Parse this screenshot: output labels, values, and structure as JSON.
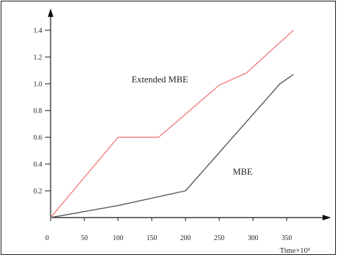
{
  "chart_data": {
    "type": "line",
    "title": "",
    "xlabel": "Time×10³",
    "ylabel": "",
    "xlim": [
      0,
      370
    ],
    "ylim": [
      0,
      1.5
    ],
    "x_ticks": [
      0,
      50,
      100,
      150,
      200,
      250,
      300,
      350
    ],
    "y_ticks": [
      0.2,
      0.4,
      0.6,
      0.8,
      1.0,
      1.2,
      1.4
    ],
    "x_tick_labels": [
      "0",
      "50",
      "100",
      "150",
      "200",
      "250",
      "300",
      "350"
    ],
    "y_tick_labels": [
      "0.2",
      "0.4",
      "0.6",
      "0.8",
      "1.0",
      "1.2",
      "1.4"
    ],
    "grid": false,
    "legend": "none",
    "series": [
      {
        "name": "Extended MBE",
        "color": "#f08080",
        "label_at": [
          120,
          1.01
        ],
        "x": [
          0,
          100,
          160,
          250,
          290,
          360
        ],
        "y": [
          0,
          0.6,
          0.6,
          0.99,
          1.08,
          1.4
        ]
      },
      {
        "name": "MBE",
        "color": "#555555",
        "label_at": [
          270,
          0.32
        ],
        "x": [
          0,
          100,
          200,
          340,
          360
        ],
        "y": [
          0,
          0.09,
          0.2,
          1.0,
          1.07
        ]
      }
    ]
  }
}
